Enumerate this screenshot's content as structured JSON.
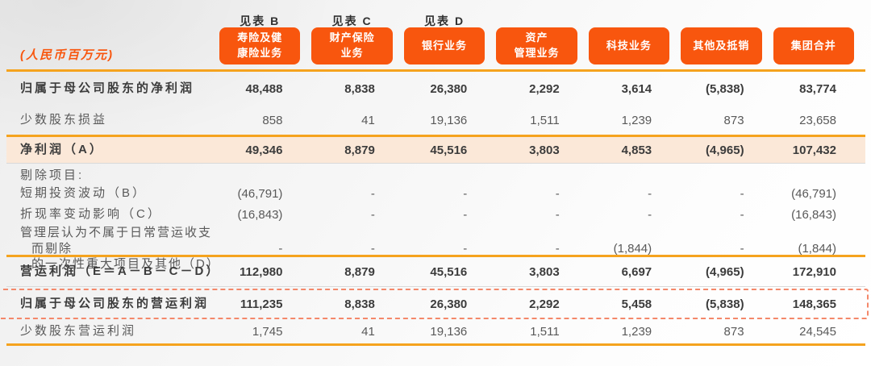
{
  "unit_label": "(人民币百万元)",
  "see_table": [
    "见表 B",
    "见表 C",
    "见表 D"
  ],
  "segments": [
    "寿险及健\n康险业务",
    "财产保险\n业务",
    "银行业务",
    "资产\n管理业务",
    "科技业务",
    "其他及抵销",
    "集团合并"
  ],
  "section_label": "剔除项目:",
  "rows": {
    "net_profit_parent": {
      "label": "归属于母公司股东的净利润",
      "values": [
        "48,488",
        "8,838",
        "26,380",
        "2,292",
        "3,614",
        "(5,838)",
        "83,774"
      ]
    },
    "minority_interest": {
      "label": "少数股东损益",
      "values": [
        "858",
        "41",
        "19,136",
        "1,511",
        "1,239",
        "873",
        "23,658"
      ]
    },
    "net_profit": {
      "label": "净利润（A）",
      "values": [
        "49,346",
        "8,879",
        "45,516",
        "3,803",
        "4,853",
        "(4,965)",
        "107,432"
      ]
    },
    "short_term_investment_volatility": {
      "label": "短期投资波动（B）",
      "values": [
        "(46,791)",
        "-",
        "-",
        "-",
        "-",
        "-",
        "(46,791)"
      ]
    },
    "discount_rate_change": {
      "label": "折现率变动影响（C）",
      "values": [
        "(16,843)",
        "-",
        "-",
        "-",
        "-",
        "-",
        "(16,843)"
      ]
    },
    "one_off_items": {
      "label": "管理层认为不属于日常营运收支而剔除\n的一次性重大项目及其他（D）",
      "values": [
        "-",
        "-",
        "-",
        "-",
        "(1,844)",
        "-",
        "(1,844)"
      ]
    },
    "operating_profit": {
      "label": "营运利润（E＝A－B－C－D）",
      "values": [
        "112,980",
        "8,879",
        "45,516",
        "3,803",
        "6,697",
        "(4,965)",
        "172,910"
      ]
    },
    "operating_profit_parent": {
      "label": "归属于母公司股东的营运利润",
      "values": [
        "111,235",
        "8,838",
        "26,380",
        "2,292",
        "5,458",
        "(5,838)",
        "148,365"
      ]
    },
    "minority_operating_profit": {
      "label": "少数股东营运利润",
      "values": [
        "1,745",
        "41",
        "19,136",
        "1,511",
        "1,239",
        "873",
        "24,545"
      ]
    }
  },
  "colors": {
    "accent": "#f8560e",
    "line": "#f5a31e",
    "highlight": "#fbe8d8",
    "dashed": "#f4886a",
    "ink": "#3c3c3c",
    "muted": "#595959"
  }
}
